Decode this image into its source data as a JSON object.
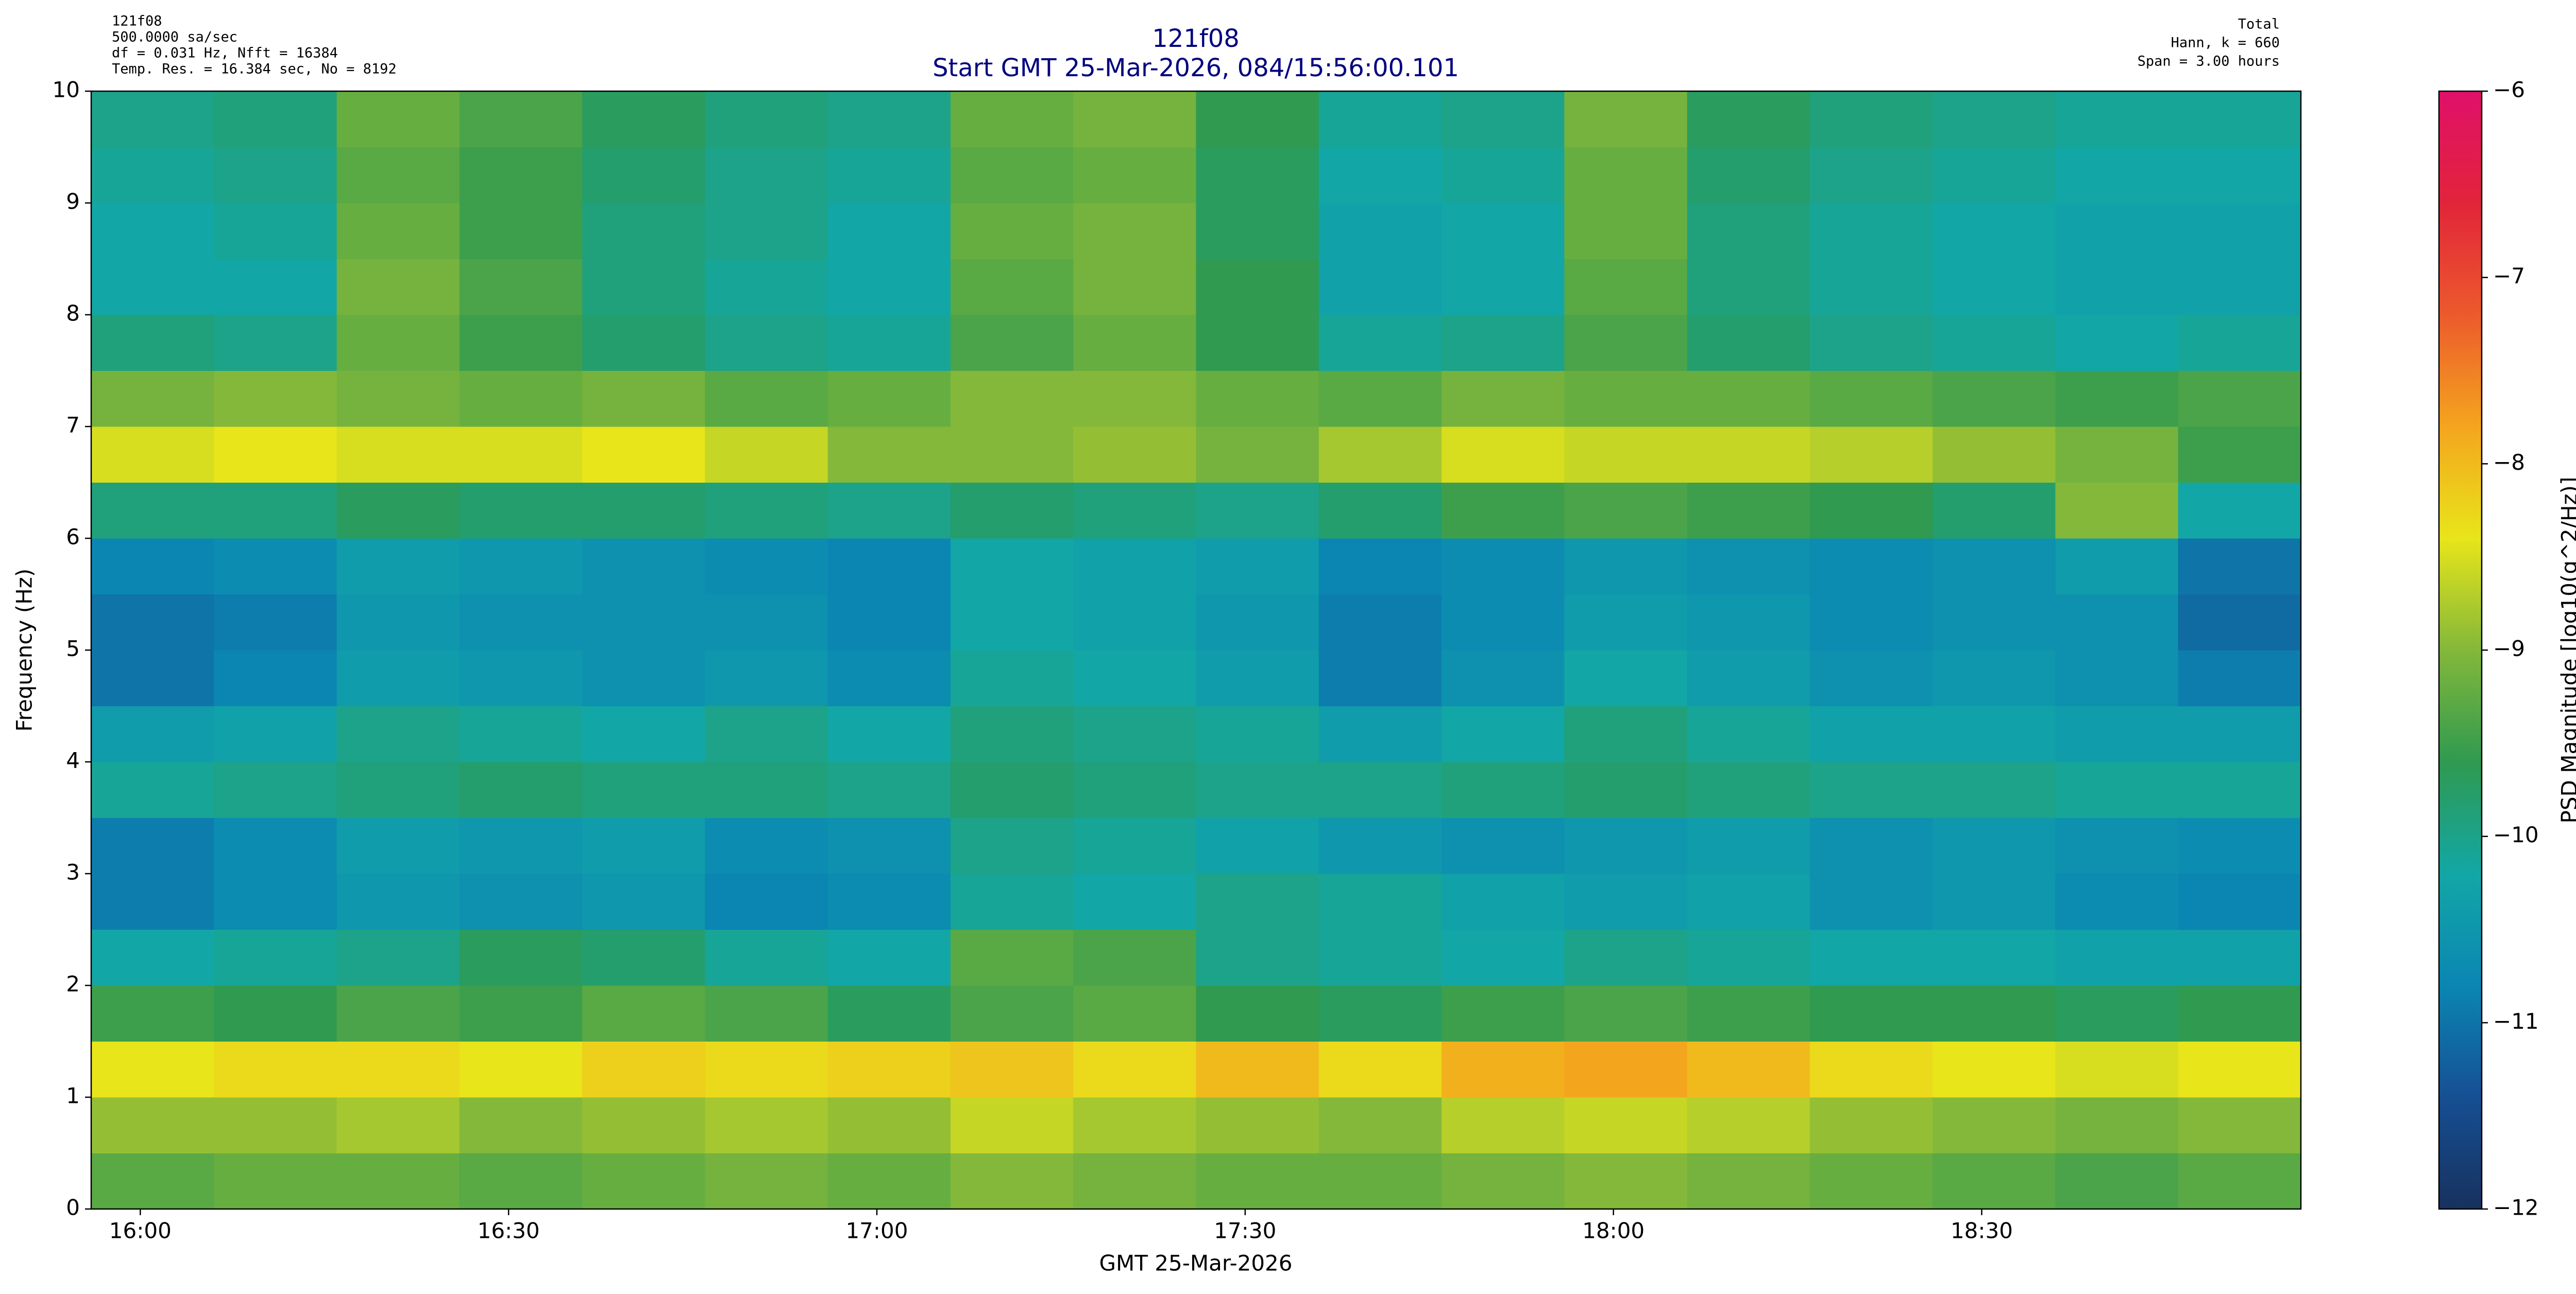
{
  "chart_data": {
    "type": "heatmap",
    "title": "121f08",
    "subtitle": "Start GMT 25-Mar-2026, 084/15:56:00.101",
    "info_left": [
      "121f08",
      "500.0000 sa/sec",
      "df = 0.031 Hz,  Nfft = 16384",
      "Temp. Res. = 16.384 sec, No = 8192"
    ],
    "info_right": [
      "Total",
      "Hann, k = 660",
      "Span = 3.00 hours"
    ],
    "xlabel": "GMT 25-Mar-2026",
    "ylabel": "Frequency (Hz)",
    "zlabel": "PSD Magnitude [log10(g^2/Hz)]",
    "xlim": [
      "15:56",
      "18:56"
    ],
    "xticks": [
      "16:00",
      "16:30",
      "17:00",
      "17:30",
      "18:00",
      "18:30"
    ],
    "ylim": [
      0,
      10
    ],
    "yticks": [
      0,
      1,
      2,
      3,
      4,
      5,
      6,
      7,
      8,
      9,
      10
    ],
    "zlim": [
      -12,
      -6
    ],
    "zticks": [
      {
        "value": -12,
        "label": "−12"
      },
      {
        "value": -11,
        "label": "−11"
      },
      {
        "value": -10,
        "label": "−10"
      },
      {
        "value": -9,
        "label": "−9"
      },
      {
        "value": -8,
        "label": "−8"
      },
      {
        "value": -7,
        "label": "−7"
      },
      {
        "value": -6,
        "label": "−6"
      }
    ],
    "colorscale": [
      "#17315e",
      "#164f93",
      "#0b86b3",
      "#12a7a6",
      "#2f9a50",
      "#83b83a",
      "#e8e51a",
      "#f4a51e",
      "#ec5a2c",
      "#e2243a",
      "#e0106a"
    ],
    "x_bins": [
      "15:56",
      "16:06",
      "16:16",
      "16:26",
      "16:36",
      "16:46",
      "16:56",
      "17:06",
      "17:16",
      "17:26",
      "17:36",
      "17:46",
      "17:56",
      "18:06",
      "18:16",
      "18:26",
      "18:36",
      "18:46",
      "18:56"
    ],
    "y_bins": [
      0,
      0.5,
      1,
      1.5,
      2,
      2.5,
      3,
      3.5,
      4,
      4.5,
      5,
      5.5,
      6,
      6.5,
      7,
      7.5,
      8,
      8.5,
      9,
      9.5,
      10
    ],
    "values": [
      [
        -9.3,
        -9.2,
        -9.2,
        -9.3,
        -9.2,
        -9.1,
        -9.2,
        -9.0,
        -9.1,
        -9.2,
        -9.2,
        -9.1,
        -9.0,
        -9.1,
        -9.2,
        -9.3,
        -9.4,
        -9.3
      ],
      [
        -8.9,
        -8.9,
        -8.8,
        -9.0,
        -8.9,
        -8.8,
        -8.9,
        -8.6,
        -8.8,
        -8.9,
        -9.0,
        -8.7,
        -8.6,
        -8.7,
        -8.9,
        -9.0,
        -9.1,
        -9.0
      ],
      [
        -8.4,
        -8.3,
        -8.3,
        -8.4,
        -8.2,
        -8.3,
        -8.2,
        -8.1,
        -8.3,
        -8.0,
        -8.3,
        -7.9,
        -7.8,
        -8.0,
        -8.3,
        -8.4,
        -8.5,
        -8.4
      ],
      [
        -9.5,
        -9.6,
        -9.4,
        -9.5,
        -9.3,
        -9.4,
        -9.7,
        -9.4,
        -9.3,
        -9.6,
        -9.7,
        -9.5,
        -9.4,
        -9.5,
        -9.6,
        -9.6,
        -9.7,
        -9.6
      ],
      [
        -10.2,
        -10.1,
        -10.0,
        -9.7,
        -9.8,
        -10.1,
        -10.2,
        -9.3,
        -9.4,
        -10.0,
        -10.1,
        -10.2,
        -10.0,
        -10.1,
        -10.2,
        -10.2,
        -10.3,
        -10.3
      ],
      [
        -10.9,
        -10.7,
        -10.5,
        -10.6,
        -10.5,
        -10.8,
        -10.7,
        -10.1,
        -10.2,
        -10.0,
        -10.1,
        -10.3,
        -10.4,
        -10.3,
        -10.6,
        -10.5,
        -10.7,
        -10.8
      ],
      [
        -10.9,
        -10.7,
        -10.4,
        -10.5,
        -10.4,
        -10.7,
        -10.6,
        -10.0,
        -10.1,
        -10.3,
        -10.5,
        -10.6,
        -10.5,
        -10.4,
        -10.6,
        -10.5,
        -10.6,
        -10.7
      ],
      [
        -10.1,
        -10.0,
        -9.9,
        -9.8,
        -9.9,
        -9.9,
        -10.0,
        -9.8,
        -9.9,
        -10.0,
        -10.0,
        -9.9,
        -9.8,
        -9.9,
        -10.0,
        -10.0,
        -10.1,
        -10.1
      ],
      [
        -10.4,
        -10.3,
        -10.0,
        -10.1,
        -10.2,
        -10.0,
        -10.2,
        -9.9,
        -10.0,
        -10.1,
        -10.4,
        -10.2,
        -9.9,
        -10.1,
        -10.3,
        -10.3,
        -10.4,
        -10.4
      ],
      [
        -11.0,
        -10.8,
        -10.4,
        -10.5,
        -10.6,
        -10.5,
        -10.7,
        -10.1,
        -10.2,
        -10.4,
        -10.9,
        -10.6,
        -10.2,
        -10.4,
        -10.6,
        -10.5,
        -10.6,
        -10.9
      ],
      [
        -11.0,
        -10.9,
        -10.5,
        -10.6,
        -10.6,
        -10.6,
        -10.8,
        -10.2,
        -10.3,
        -10.5,
        -10.9,
        -10.7,
        -10.4,
        -10.5,
        -10.7,
        -10.6,
        -10.6,
        -11.1
      ],
      [
        -10.8,
        -10.7,
        -10.4,
        -10.5,
        -10.6,
        -10.7,
        -10.8,
        -10.2,
        -10.3,
        -10.4,
        -10.8,
        -10.7,
        -10.5,
        -10.6,
        -10.7,
        -10.6,
        -10.4,
        -11.0
      ],
      [
        -9.9,
        -9.9,
        -9.7,
        -9.8,
        -9.8,
        -9.9,
        -10.0,
        -9.8,
        -9.9,
        -10.0,
        -9.8,
        -9.5,
        -9.4,
        -9.5,
        -9.6,
        -9.8,
        -9.0,
        -10.2
      ],
      [
        -8.5,
        -8.4,
        -8.5,
        -8.5,
        -8.4,
        -8.6,
        -9.0,
        -9.0,
        -8.9,
        -9.1,
        -8.8,
        -8.5,
        -8.6,
        -8.6,
        -8.7,
        -8.9,
        -9.1,
        -9.5
      ],
      [
        -9.1,
        -9.0,
        -9.1,
        -9.2,
        -9.1,
        -9.3,
        -9.2,
        -9.0,
        -9.0,
        -9.2,
        -9.3,
        -9.1,
        -9.2,
        -9.2,
        -9.3,
        -9.4,
        -9.5,
        -9.4
      ],
      [
        -9.9,
        -10.0,
        -9.2,
        -9.5,
        -9.8,
        -10.0,
        -10.1,
        -9.4,
        -9.2,
        -9.6,
        -10.1,
        -10.0,
        -9.4,
        -9.8,
        -10.0,
        -10.1,
        -10.2,
        -10.1
      ],
      [
        -10.2,
        -10.2,
        -9.1,
        -9.4,
        -9.9,
        -10.1,
        -10.2,
        -9.3,
        -9.1,
        -9.6,
        -10.3,
        -10.2,
        -9.3,
        -9.9,
        -10.1,
        -10.2,
        -10.3,
        -10.3
      ],
      [
        -10.2,
        -10.1,
        -9.2,
        -9.5,
        -9.9,
        -10.0,
        -10.2,
        -9.2,
        -9.1,
        -9.7,
        -10.3,
        -10.2,
        -9.2,
        -9.9,
        -10.1,
        -10.2,
        -10.3,
        -10.3
      ],
      [
        -10.1,
        -10.0,
        -9.3,
        -9.5,
        -9.8,
        -10.0,
        -10.1,
        -9.3,
        -9.2,
        -9.7,
        -10.2,
        -10.1,
        -9.2,
        -9.8,
        -10.0,
        -10.1,
        -10.2,
        -10.2
      ],
      [
        -10.0,
        -9.9,
        -9.2,
        -9.4,
        -9.7,
        -9.9,
        -10.0,
        -9.2,
        -9.1,
        -9.6,
        -10.1,
        -10.0,
        -9.1,
        -9.7,
        -9.9,
        -10.0,
        -10.1,
        -10.1
      ]
    ]
  }
}
